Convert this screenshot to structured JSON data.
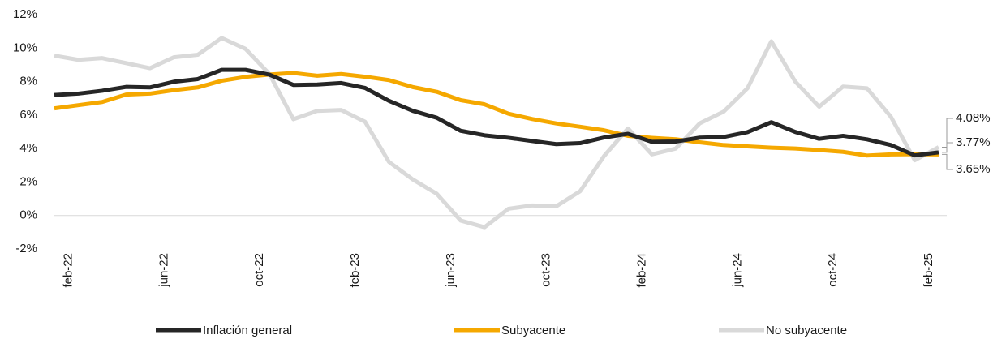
{
  "chart_data": {
    "type": "line",
    "categories": [
      null,
      "feb-22",
      null,
      null,
      null,
      "jun-22",
      null,
      null,
      null,
      "oct-22",
      null,
      null,
      null,
      "feb-23",
      null,
      null,
      null,
      "jun-23",
      null,
      null,
      null,
      "oct-23",
      null,
      null,
      null,
      "feb-24",
      null,
      null,
      null,
      "jun-24",
      null,
      null,
      null,
      "oct-24",
      null,
      null,
      null,
      "feb-25"
    ],
    "series": [
      {
        "name": "Inflación general",
        "color": "#262626",
        "values": [
          7.2,
          7.28,
          7.45,
          7.68,
          7.65,
          7.99,
          8.15,
          8.7,
          8.7,
          8.41,
          7.8,
          7.82,
          7.91,
          7.62,
          6.85,
          6.25,
          5.84,
          5.06,
          4.79,
          4.64,
          4.45,
          4.26,
          4.32,
          4.66,
          4.88,
          4.4,
          4.42,
          4.65,
          4.69,
          4.98,
          5.57,
          4.99,
          4.58,
          4.76,
          4.55,
          4.21,
          3.59,
          3.77
        ],
        "value_labels": [
          null,
          null,
          null,
          null,
          null,
          null,
          null,
          null,
          null,
          null,
          null,
          null,
          null,
          null,
          null,
          null,
          null,
          null,
          null,
          null,
          null,
          null,
          null,
          null,
          null,
          null,
          null,
          null,
          null,
          null,
          null,
          null,
          null,
          null,
          null,
          null,
          null,
          "3.77%"
        ]
      },
      {
        "name": "Subyacente",
        "color": "#f5a800",
        "values": [
          6.4,
          6.59,
          6.78,
          7.22,
          7.28,
          7.49,
          7.65,
          8.05,
          8.28,
          8.42,
          8.51,
          8.35,
          8.45,
          8.29,
          8.09,
          7.67,
          7.39,
          6.89,
          6.64,
          6.08,
          5.76,
          5.5,
          5.3,
          5.09,
          4.76,
          4.64,
          4.55,
          4.37,
          4.21,
          4.13,
          4.05,
          4.0,
          3.91,
          3.8,
          3.58,
          3.65,
          3.66,
          3.65
        ],
        "value_labels": [
          null,
          null,
          null,
          null,
          null,
          null,
          null,
          null,
          null,
          null,
          null,
          null,
          null,
          null,
          null,
          null,
          null,
          null,
          null,
          null,
          null,
          null,
          null,
          null,
          null,
          null,
          null,
          null,
          null,
          null,
          null,
          null,
          null,
          null,
          null,
          null,
          null,
          "3.65%"
        ]
      },
      {
        "name": "No subyacente",
        "color": "#d9d9d9",
        "values": [
          9.55,
          9.3,
          9.4,
          9.1,
          8.8,
          9.45,
          9.6,
          10.6,
          9.95,
          8.45,
          5.75,
          6.25,
          6.3,
          5.6,
          3.2,
          2.15,
          1.3,
          -0.3,
          -0.7,
          0.4,
          0.6,
          0.55,
          1.45,
          3.55,
          5.2,
          3.65,
          4.0,
          5.5,
          6.2,
          7.6,
          10.4,
          8.0,
          6.5,
          7.7,
          7.6,
          5.9,
          3.3,
          4.08
        ],
        "value_labels": [
          null,
          null,
          null,
          null,
          null,
          null,
          null,
          null,
          null,
          null,
          null,
          null,
          null,
          null,
          null,
          null,
          null,
          null,
          null,
          null,
          null,
          null,
          null,
          null,
          null,
          null,
          null,
          null,
          null,
          null,
          null,
          null,
          null,
          null,
          null,
          null,
          null,
          "4.08%"
        ]
      }
    ],
    "ylim": [
      -2,
      12
    ],
    "yticks": [
      {
        "value": -2,
        "label": "-2%"
      },
      {
        "value": 0,
        "label": "0%"
      },
      {
        "value": 2,
        "label": "2%"
      },
      {
        "value": 4,
        "label": "4%"
      },
      {
        "value": 6,
        "label": "6%"
      },
      {
        "value": 8,
        "label": "8%"
      },
      {
        "value": 10,
        "label": "10%"
      },
      {
        "value": 12,
        "label": "12%"
      }
    ],
    "legend": "bottom"
  }
}
